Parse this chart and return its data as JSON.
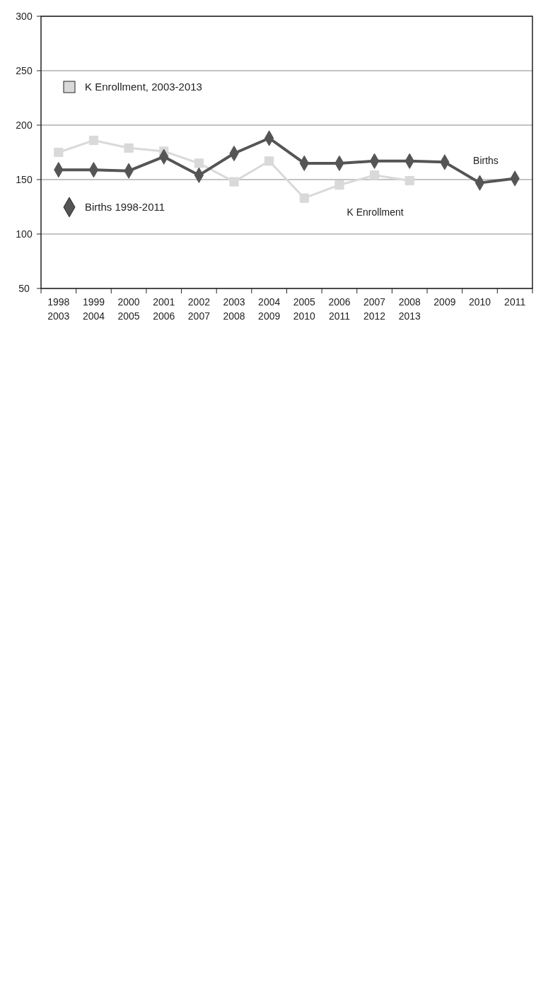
{
  "chart_data": {
    "type": "line",
    "x": [
      1998,
      1999,
      2000,
      2001,
      2002,
      2003,
      2004,
      2005,
      2006,
      2007,
      2008,
      2009,
      2010,
      2011
    ],
    "xlim": [
      1997.5,
      2011.5
    ],
    "xticks": [
      1998,
      1999,
      2000,
      2001,
      2002,
      2003,
      2004,
      2005,
      2006,
      2007,
      2008,
      2009,
      2010,
      2011
    ],
    "x2lim": [
      2002.5,
      2016.5
    ],
    "x2ticks": [
      2003,
      2004,
      2005,
      2006,
      2007,
      2008,
      2009,
      2010,
      2011,
      2012,
      2013
    ],
    "ylim": [
      50,
      300
    ],
    "yticks": [
      50,
      100,
      150,
      200,
      250,
      300
    ],
    "grid": "y",
    "legend": "top left",
    "series": [
      {
        "name": "K Enrollment, 2003-2013",
        "color": "#d9d9d9",
        "marker": "square",
        "axis": "x2",
        "x": [
          2003,
          2004,
          2005,
          2006,
          2007,
          2008,
          2009,
          2010,
          2011,
          2012,
          2013
        ],
        "values": [
          175,
          186,
          179,
          176,
          165,
          148,
          167,
          133,
          145,
          154,
          149
        ]
      },
      {
        "name": "Births 1998-2011",
        "color": "#555555",
        "marker": "diamond",
        "values": [
          159,
          159,
          158,
          171,
          154,
          174,
          188,
          165,
          165,
          167,
          167,
          166,
          147,
          151
        ]
      }
    ],
    "annotations": [
      "Births",
      "K Enrollment"
    ]
  }
}
